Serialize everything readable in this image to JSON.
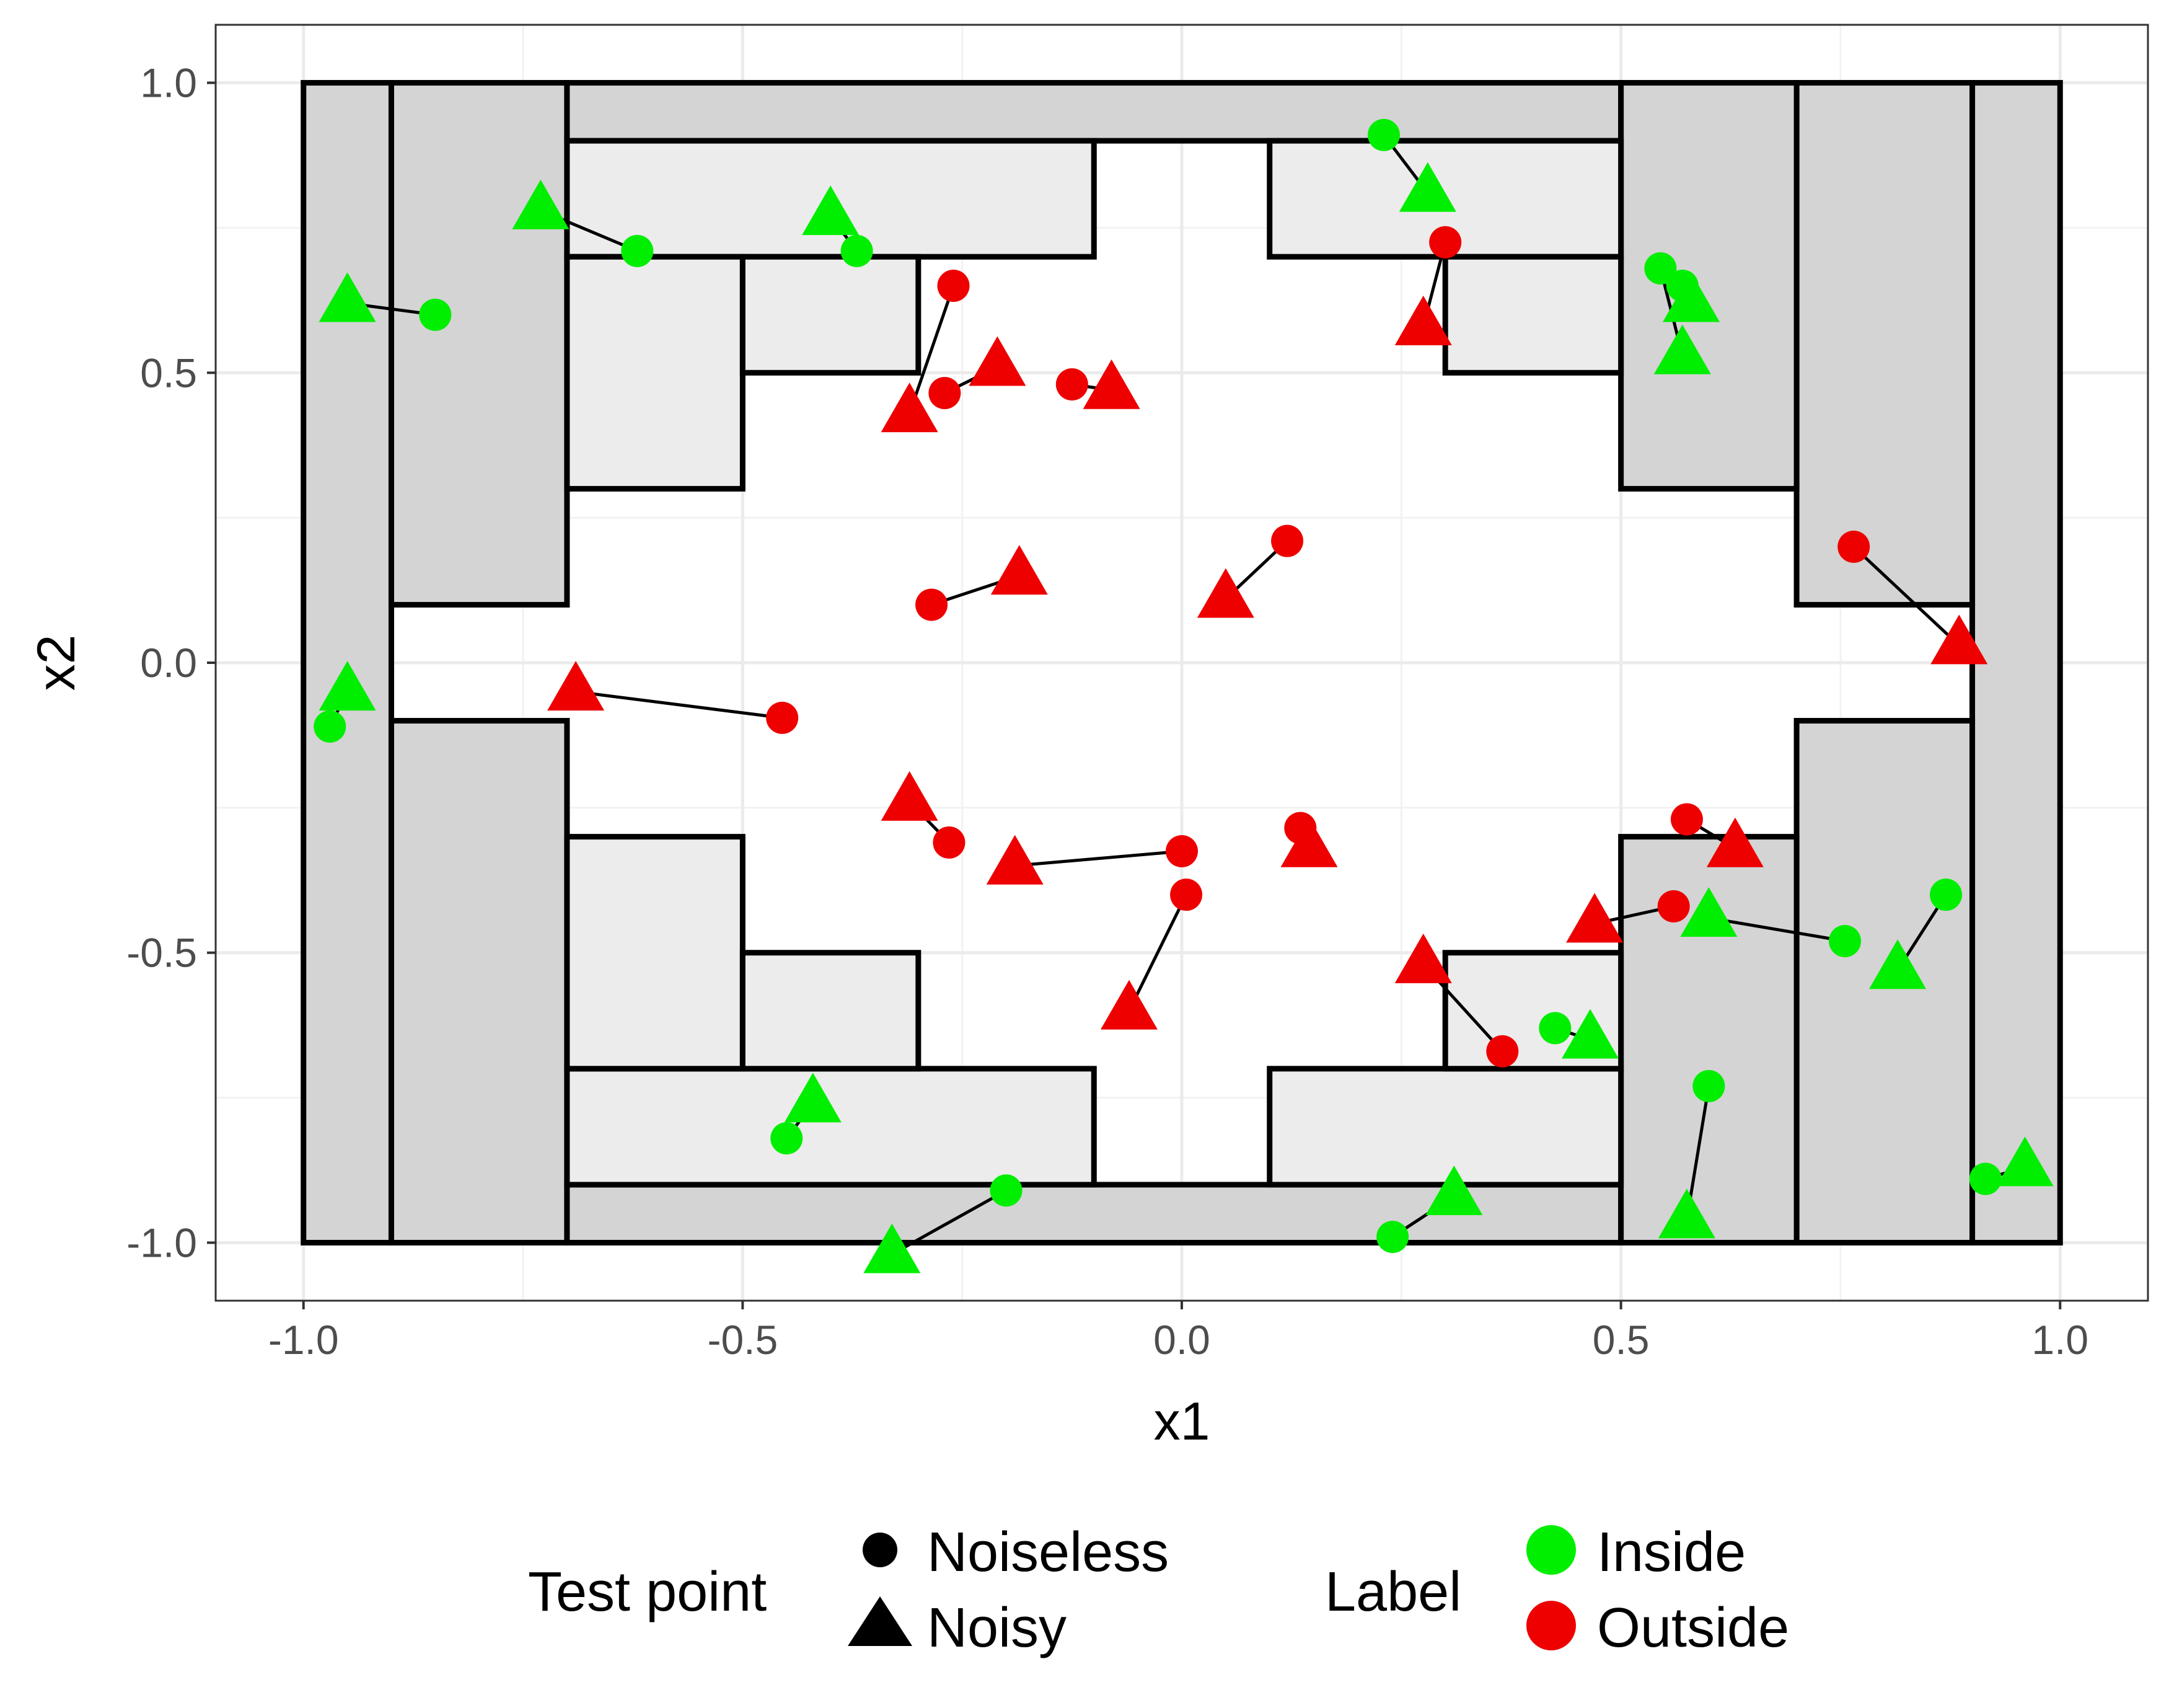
{
  "chart_data": {
    "type": "scatter",
    "title": "",
    "xlabel": "x1",
    "ylabel": "x2",
    "xlim": [
      -1.1,
      1.1
    ],
    "ylim": [
      -1.1,
      1.1
    ],
    "x_ticks": [
      -1.0,
      -0.5,
      0.0,
      0.5,
      1.0
    ],
    "x_tick_labels": [
      "-1.0",
      "-0.5",
      "0.0",
      "0.5",
      "1.0"
    ],
    "y_ticks": [
      -1.0,
      -0.5,
      0.0,
      0.5,
      1.0
    ],
    "y_tick_labels": [
      "-1.0",
      "-0.5",
      "0.0",
      "0.5",
      "1.0"
    ],
    "grid": true,
    "legend_position": "bottom",
    "legends": [
      {
        "title": "Test point",
        "items": [
          {
            "label": "Noiseless",
            "shape": "circle"
          },
          {
            "label": "Noisy",
            "shape": "triangle"
          }
        ]
      },
      {
        "title": "Label",
        "items": [
          {
            "label": "Inside",
            "color": "#00ee00"
          },
          {
            "label": "Outside",
            "color": "#ee0000"
          }
        ]
      }
    ],
    "colors": {
      "Inside": "#00ee00",
      "Outside": "#ee0000",
      "region_dark": "#d4d4d4",
      "region_light": "#ececec",
      "region_border": "#000000"
    },
    "regions": [
      {
        "x": [
          -1.0,
          -0.9
        ],
        "y": [
          -1.0,
          1.0
        ],
        "shade": "dark"
      },
      {
        "x": [
          0.9,
          1.0
        ],
        "y": [
          -1.0,
          1.0
        ],
        "shade": "dark"
      },
      {
        "x": [
          -0.9,
          -0.7
        ],
        "y": [
          0.1,
          1.0
        ],
        "shade": "dark"
      },
      {
        "x": [
          -0.9,
          -0.7
        ],
        "y": [
          -1.0,
          -0.1
        ],
        "shade": "dark"
      },
      {
        "x": [
          0.7,
          0.9
        ],
        "y": [
          0.1,
          1.0
        ],
        "shade": "dark"
      },
      {
        "x": [
          0.7,
          0.9
        ],
        "y": [
          -1.0,
          -0.1
        ],
        "shade": "dark"
      },
      {
        "x": [
          -0.7,
          0.5
        ],
        "y": [
          0.9,
          1.0
        ],
        "shade": "dark"
      },
      {
        "x": [
          -0.7,
          0.5
        ],
        "y": [
          -1.0,
          -0.9
        ],
        "shade": "dark"
      },
      {
        "x": [
          0.5,
          0.7
        ],
        "y": [
          0.3,
          1.0
        ],
        "shade": "dark"
      },
      {
        "x": [
          0.5,
          0.7
        ],
        "y": [
          -1.0,
          -0.3
        ],
        "shade": "dark"
      },
      {
        "x": [
          -0.7,
          -0.1
        ],
        "y": [
          0.7,
          0.9
        ],
        "shade": "light"
      },
      {
        "x": [
          0.1,
          0.5
        ],
        "y": [
          0.7,
          0.9
        ],
        "shade": "light"
      },
      {
        "x": [
          -0.7,
          -0.1
        ],
        "y": [
          -0.9,
          -0.7
        ],
        "shade": "light"
      },
      {
        "x": [
          0.1,
          0.5
        ],
        "y": [
          -0.9,
          -0.7
        ],
        "shade": "light"
      },
      {
        "x": [
          -0.7,
          -0.5
        ],
        "y": [
          0.3,
          0.7
        ],
        "shade": "light"
      },
      {
        "x": [
          -0.7,
          -0.5
        ],
        "y": [
          -0.7,
          -0.3
        ],
        "shade": "light"
      },
      {
        "x": [
          -0.5,
          -0.3
        ],
        "y": [
          0.5,
          0.7
        ],
        "shade": "light"
      },
      {
        "x": [
          -0.5,
          -0.3
        ],
        "y": [
          -0.7,
          -0.5
        ],
        "shade": "light"
      },
      {
        "x": [
          0.3,
          0.5
        ],
        "y": [
          0.5,
          0.7
        ],
        "shade": "light"
      },
      {
        "x": [
          0.3,
          0.5
        ],
        "y": [
          -0.7,
          -0.5
        ],
        "shade": "light"
      }
    ],
    "points": [
      {
        "label": "Inside",
        "noiseless": [
          -0.85,
          0.6
        ],
        "noisy": [
          -0.95,
          0.62
        ]
      },
      {
        "label": "Inside",
        "noiseless": [
          -0.62,
          0.71
        ],
        "noisy": [
          -0.73,
          0.78
        ]
      },
      {
        "label": "Inside",
        "noiseless": [
          -0.37,
          0.71
        ],
        "noisy": [
          -0.4,
          0.77
        ]
      },
      {
        "label": "Inside",
        "noiseless": [
          0.23,
          0.91
        ],
        "noisy": [
          0.28,
          0.81
        ]
      },
      {
        "label": "Inside",
        "noiseless": [
          0.545,
          0.68
        ],
        "noisy": [
          0.57,
          0.53
        ]
      },
      {
        "label": "Inside",
        "noiseless": [
          0.57,
          0.65
        ],
        "noisy": [
          0.58,
          0.62
        ]
      },
      {
        "label": "Inside",
        "noiseless": [
          -0.97,
          -0.11
        ],
        "noisy": [
          -0.95,
          -0.05
        ]
      },
      {
        "label": "Inside",
        "noiseless": [
          0.755,
          -0.48
        ],
        "noisy": [
          0.6,
          -0.44
        ]
      },
      {
        "label": "Inside",
        "noiseless": [
          0.87,
          -0.4
        ],
        "noisy": [
          0.815,
          -0.53
        ]
      },
      {
        "label": "Inside",
        "noiseless": [
          0.425,
          -0.63
        ],
        "noisy": [
          0.465,
          -0.65
        ]
      },
      {
        "label": "Inside",
        "noiseless": [
          -0.45,
          -0.82
        ],
        "noisy": [
          -0.42,
          -0.76
        ]
      },
      {
        "label": "Inside",
        "noiseless": [
          -0.2,
          -0.91
        ],
        "noisy": [
          -0.33,
          -1.02
        ]
      },
      {
        "label": "Inside",
        "noiseless": [
          0.24,
          -0.99
        ],
        "noisy": [
          0.31,
          -0.92
        ]
      },
      {
        "label": "Inside",
        "noiseless": [
          0.6,
          -0.73
        ],
        "noisy": [
          0.575,
          -0.96
        ]
      },
      {
        "label": "Inside",
        "noiseless": [
          0.915,
          -0.89
        ],
        "noisy": [
          0.96,
          -0.87
        ]
      },
      {
        "label": "Outside",
        "noiseless": [
          -0.26,
          0.65
        ],
        "noisy": [
          -0.31,
          0.43
        ]
      },
      {
        "label": "Outside",
        "noiseless": [
          -0.27,
          0.465
        ],
        "noisy": [
          -0.21,
          0.51
        ]
      },
      {
        "label": "Outside",
        "noiseless": [
          -0.125,
          0.48
        ],
        "noisy": [
          -0.08,
          0.47
        ]
      },
      {
        "label": "Outside",
        "noiseless": [
          0.3,
          0.725
        ],
        "noisy": [
          0.275,
          0.58
        ]
      },
      {
        "label": "Outside",
        "noiseless": [
          -0.285,
          0.1
        ],
        "noisy": [
          -0.185,
          0.15
        ]
      },
      {
        "label": "Outside",
        "noiseless": [
          0.12,
          0.21
        ],
        "noisy": [
          0.05,
          0.11
        ]
      },
      {
        "label": "Outside",
        "noiseless": [
          0.765,
          0.2
        ],
        "noisy": [
          0.885,
          0.03
        ]
      },
      {
        "label": "Outside",
        "noiseless": [
          -0.455,
          -0.095
        ],
        "noisy": [
          -0.69,
          -0.05
        ]
      },
      {
        "label": "Outside",
        "noiseless": [
          -0.265,
          -0.31
        ],
        "noisy": [
          -0.31,
          -0.24
        ]
      },
      {
        "label": "Outside",
        "noiseless": [
          0.0,
          -0.325
        ],
        "noisy": [
          -0.19,
          -0.35
        ]
      },
      {
        "label": "Outside",
        "noiseless": [
          0.135,
          -0.285
        ],
        "noisy": [
          0.145,
          -0.32
        ]
      },
      {
        "label": "Outside",
        "noiseless": [
          0.005,
          -0.4
        ],
        "noisy": [
          -0.06,
          -0.6
        ]
      },
      {
        "label": "Outside",
        "noiseless": [
          0.575,
          -0.27
        ],
        "noisy": [
          0.63,
          -0.32
        ]
      },
      {
        "label": "Outside",
        "noiseless": [
          0.56,
          -0.42
        ],
        "noisy": [
          0.47,
          -0.45
        ]
      },
      {
        "label": "Outside",
        "noiseless": [
          0.365,
          -0.67
        ],
        "noisy": [
          0.275,
          -0.52
        ]
      }
    ]
  }
}
